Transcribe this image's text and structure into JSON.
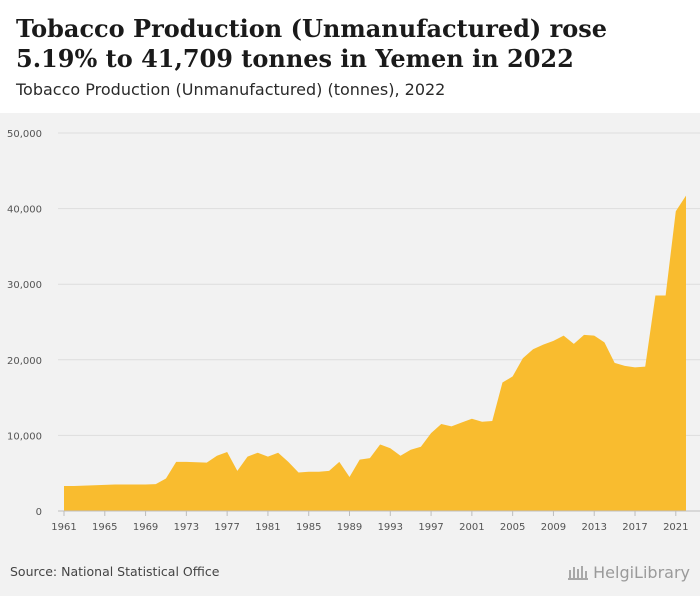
{
  "header": {
    "title": "Tobacco Production (Unmanufactured) rose 5.19% to 41,709 tonnes in Yemen in 2022",
    "subtitle": "Tobacco Production (Unmanufactured) (tonnes), 2022"
  },
  "footer": {
    "source": "Source: National Statistical Office",
    "logo_text": "HelgiLibrary"
  },
  "colors": {
    "area": "#f9bc2f",
    "grid": "#dddddd",
    "background": "#f2f2f2",
    "axis_text": "#555555"
  },
  "chart_data": {
    "type": "area",
    "title": "Tobacco Production (Unmanufactured) (tonnes), 2022",
    "xlabel": "",
    "ylabel": "",
    "ylim": [
      0,
      50000
    ],
    "xlim": [
      1961,
      2022
    ],
    "grid": true,
    "y_ticks": [
      "0",
      "10,000",
      "20,000",
      "30,000",
      "40,000",
      "50,000"
    ],
    "y_tick_values": [
      0,
      10000,
      20000,
      30000,
      40000,
      50000
    ],
    "x_ticks": [
      "1961",
      "1965",
      "1969",
      "1973",
      "1977",
      "1981",
      "1985",
      "1989",
      "1993",
      "1997",
      "2001",
      "2005",
      "2009",
      "2013",
      "2017",
      "2021"
    ],
    "x": [
      1961,
      1962,
      1963,
      1964,
      1965,
      1966,
      1967,
      1968,
      1969,
      1970,
      1971,
      1972,
      1973,
      1974,
      1975,
      1976,
      1977,
      1978,
      1979,
      1980,
      1981,
      1982,
      1983,
      1984,
      1985,
      1986,
      1987,
      1988,
      1989,
      1990,
      1991,
      1992,
      1993,
      1994,
      1995,
      1996,
      1997,
      1998,
      1999,
      2000,
      2001,
      2002,
      2003,
      2004,
      2005,
      2006,
      2007,
      2008,
      2009,
      2010,
      2011,
      2012,
      2013,
      2014,
      2015,
      2016,
      2017,
      2018,
      2019,
      2020,
      2021,
      2022
    ],
    "series": [
      {
        "values": [
          3300,
          3300,
          3350,
          3400,
          3450,
          3500,
          3500,
          3500,
          3500,
          3550,
          4300,
          6500,
          6500,
          6450,
          6400,
          7300,
          7800,
          5300,
          7200,
          7700,
          7200,
          7700,
          6500,
          5100,
          5200,
          5200,
          5300,
          6500,
          4500,
          6800,
          7000,
          8800,
          8300,
          7300,
          8100,
          8500,
          10300,
          11500,
          11200,
          11700,
          12200,
          11800,
          11900,
          17000,
          17800,
          20200,
          21400,
          22000,
          22500,
          23200,
          22100,
          23300,
          23200,
          22300,
          19600,
          19200,
          19000,
          19100,
          28500,
          28500,
          39650,
          41709
        ]
      }
    ]
  }
}
